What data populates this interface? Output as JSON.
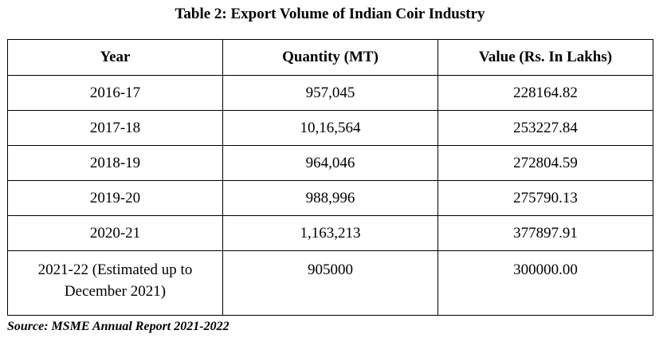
{
  "title": "Table 2: Export Volume of Indian Coir Industry",
  "table": {
    "headers": [
      "Year",
      "Quantity (MT)",
      "Value (Rs. In Lakhs)"
    ],
    "rows": [
      [
        "2016-17",
        "957,045",
        "228164.82"
      ],
      [
        "2017-18",
        "10,16,564",
        "253227.84"
      ],
      [
        "2018-19",
        "964,046",
        "272804.59"
      ],
      [
        "2019-20",
        "988,996",
        "275790.13"
      ],
      [
        "2020-21",
        "1,163,213",
        "377897.91"
      ],
      [
        "2021-22 (Estimated up to December 2021)",
        "905000",
        "300000.00"
      ]
    ]
  },
  "source": "Source: MSME Annual Report 2021-2022"
}
